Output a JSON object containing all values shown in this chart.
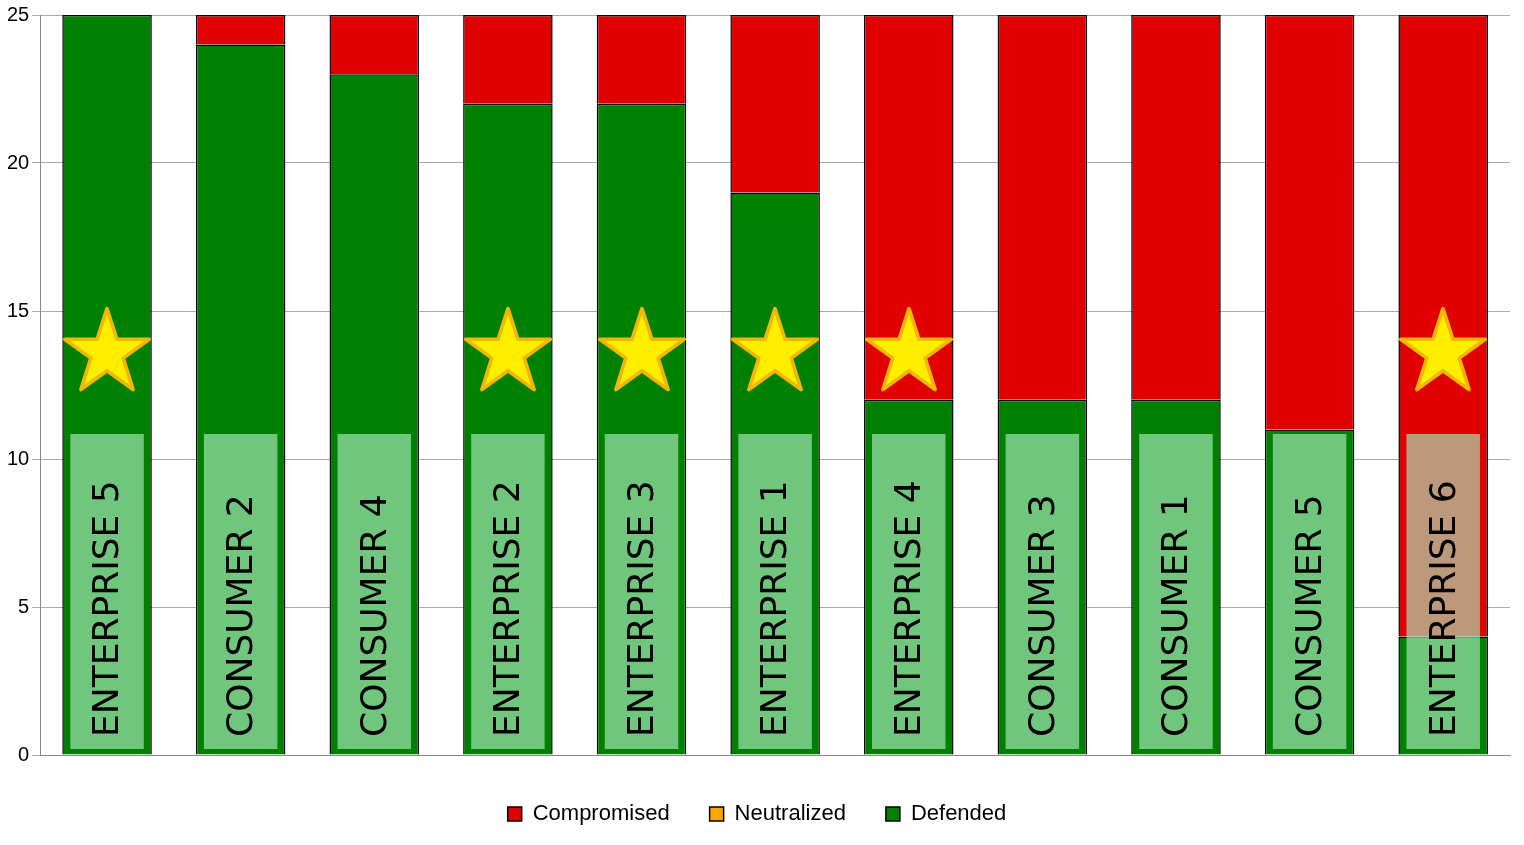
{
  "chart_data": {
    "type": "bar",
    "stacked": true,
    "categories": [
      "ENTERPRISE 5",
      "CONSUMER 2",
      "CONSUMER 4",
      "ENTERPRISE 2",
      "ENTERPRISE 3",
      "ENTERPRISE 1",
      "ENTERPRISE 4",
      "CONSUMER 3",
      "CONSUMER 1",
      "CONSUMER 5",
      "ENTERPRISE 6"
    ],
    "series": [
      {
        "name": "Defended",
        "color": "#008000",
        "values": [
          25,
          24,
          23,
          22,
          22,
          19,
          12,
          12,
          12,
          11,
          4
        ]
      },
      {
        "name": "Neutralized",
        "color": "#ffa500",
        "values": [
          0,
          0,
          0,
          0,
          0,
          0,
          0,
          0,
          0,
          0,
          0
        ]
      },
      {
        "name": "Compromised",
        "color": "#e00000",
        "values": [
          0,
          1,
          2,
          3,
          3,
          6,
          13,
          13,
          13,
          14,
          21
        ]
      }
    ],
    "ylim": [
      0,
      25
    ],
    "yticks": [
      0,
      5,
      10,
      15,
      20,
      25
    ],
    "grid": "y",
    "legend": "bottom"
  }
}
